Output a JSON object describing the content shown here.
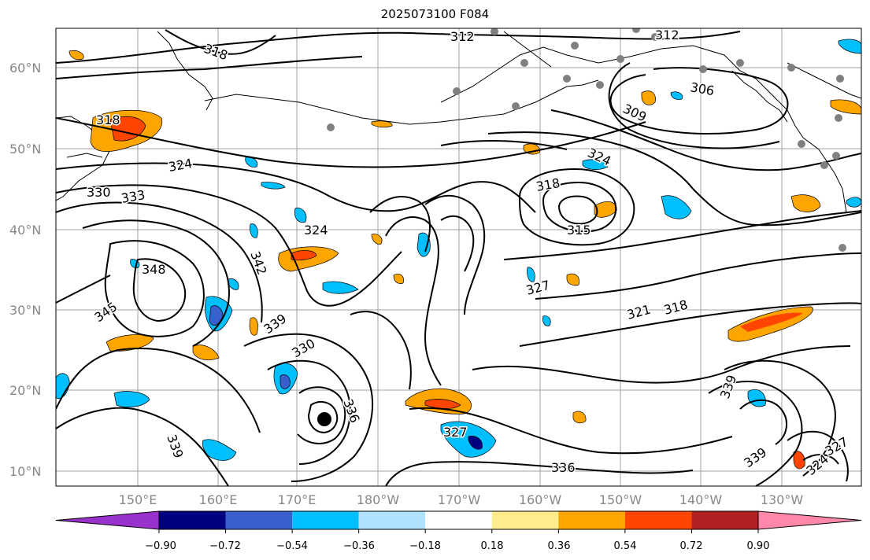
{
  "title": "2025073100 F084",
  "lat_labels": [
    "60°N",
    "50°N",
    "40°N",
    "30°N",
    "20°N",
    "10°N"
  ],
  "lon_labels": [
    "150°E",
    "160°E",
    "170°E",
    "180°W",
    "170°W",
    "160°W",
    "150°W",
    "140°W",
    "130°W"
  ],
  "contour_labels": [
    "318",
    "312",
    "312",
    "318",
    "324",
    "330",
    "333",
    "324",
    "318",
    "315",
    "324",
    "306",
    "309",
    "342",
    "348",
    "345",
    "339",
    "330",
    "336",
    "327",
    "321",
    "318",
    "339",
    "339",
    "339",
    "327",
    "336",
    "324",
    "327"
  ],
  "colorbar": {
    "ticks": [
      "−0.90",
      "−0.72",
      "−0.54",
      "−0.36",
      "−0.18",
      "0.18",
      "0.36",
      "0.54",
      "0.72",
      "0.90"
    ],
    "colors": [
      "#9932CC",
      "#000080",
      "#3A5FCD",
      "#00BFFF",
      "#B0E2FF",
      "#FFFFFF",
      "#FFEC8B",
      "#FFA500",
      "#FF4500",
      "#B22222",
      "#FF88AA"
    ]
  }
}
